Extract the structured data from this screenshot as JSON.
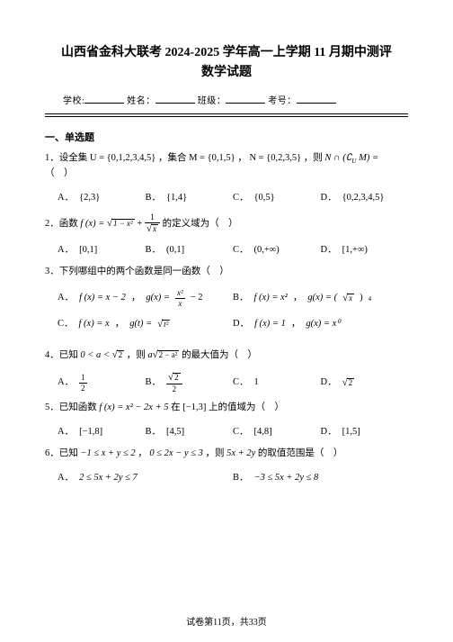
{
  "title_line1": "山西省金科大联考 2024-2025 学年高一上学期 11 月期中测评",
  "title_line2": "数学试题",
  "info": {
    "school": "学校:",
    "name": "姓名：",
    "class": "班级：",
    "exam_no": "考号："
  },
  "section1": "一、单选题",
  "q1": {
    "stem_pre": "1．设全集 ",
    "U": "U = {0,1,2,3,4,5}",
    "mid1": "，集合 ",
    "M": "M = {0,1,5}",
    "mid2": "，",
    "N": "N = {0,2,3,5}",
    "mid3": "，则 ",
    "expr": "N ∩ (∁U M) =",
    "tail": "（　）",
    "A": "{2,3}",
    "B": "{1,4}",
    "C": "{0,5}",
    "D": "{0,2,3,4,5}"
  },
  "q2": {
    "stem_pre": "2．函数 ",
    "fx": "f (x) = ",
    "rad1": "1 − x²",
    "plus": " + ",
    "frac_num": "1",
    "frac_den": "√x",
    "tail": " 的定义域为（　）",
    "A": "[0,1]",
    "B": "(0,1]",
    "C": "(0,+∞)",
    "D": "[1,+∞)"
  },
  "q3": {
    "stem": "3．下列哪组中的两个函数是同一函数（　）",
    "A1": "f (x) = x − 2",
    "A2_pre": "g(x) = ",
    "A2_num": "x²",
    "A2_den": "x",
    "A2_post": " − 2",
    "B1": "f (x) = x²",
    "B2_pre": "g(x) = (",
    "B2_rad": "x",
    "B2_post": ")⁴",
    "C1": "f (x) = x",
    "C2_pre": "g(t) = ",
    "C2_rad": "t²",
    "D1": "f (x) = 1",
    "D2": "g(x) = x⁰"
  },
  "q4": {
    "stem_pre": "4．已知 ",
    "cond": "0 < a < √2",
    "mid": "，则 ",
    "expr_pre": "a",
    "expr_rad": "2 − a²",
    "tail": " 的最大值为（　）",
    "A_num": "1",
    "A_den": "2",
    "B_num": "√2",
    "B_den": "2",
    "C": "1",
    "D": "√2"
  },
  "q5": {
    "stem_pre": "5．已知函数 ",
    "fx": "f (x) = x² − 2x + 5",
    "mid": " 在 ",
    "interval": "[−1,3]",
    "tail": " 上的值域为（　）",
    "A": "[−1,8]",
    "B": "[4,5]",
    "C": "[4,8]",
    "D": "[1,5]"
  },
  "q6": {
    "stem_pre": "6．已知 ",
    "c1": "−1 ≤ x + y ≤ 2",
    "mid": "，",
    "c2": "0 ≤ 2x − y ≤ 3",
    "mid2": "，则 ",
    "expr": "5x + 2y",
    "tail": " 的取值范围是（　）",
    "A": "2 ≤ 5x + 2y ≤ 7",
    "B": "−3 ≤ 5x + 2y ≤ 8"
  },
  "footer": "试卷第11页，共33页"
}
